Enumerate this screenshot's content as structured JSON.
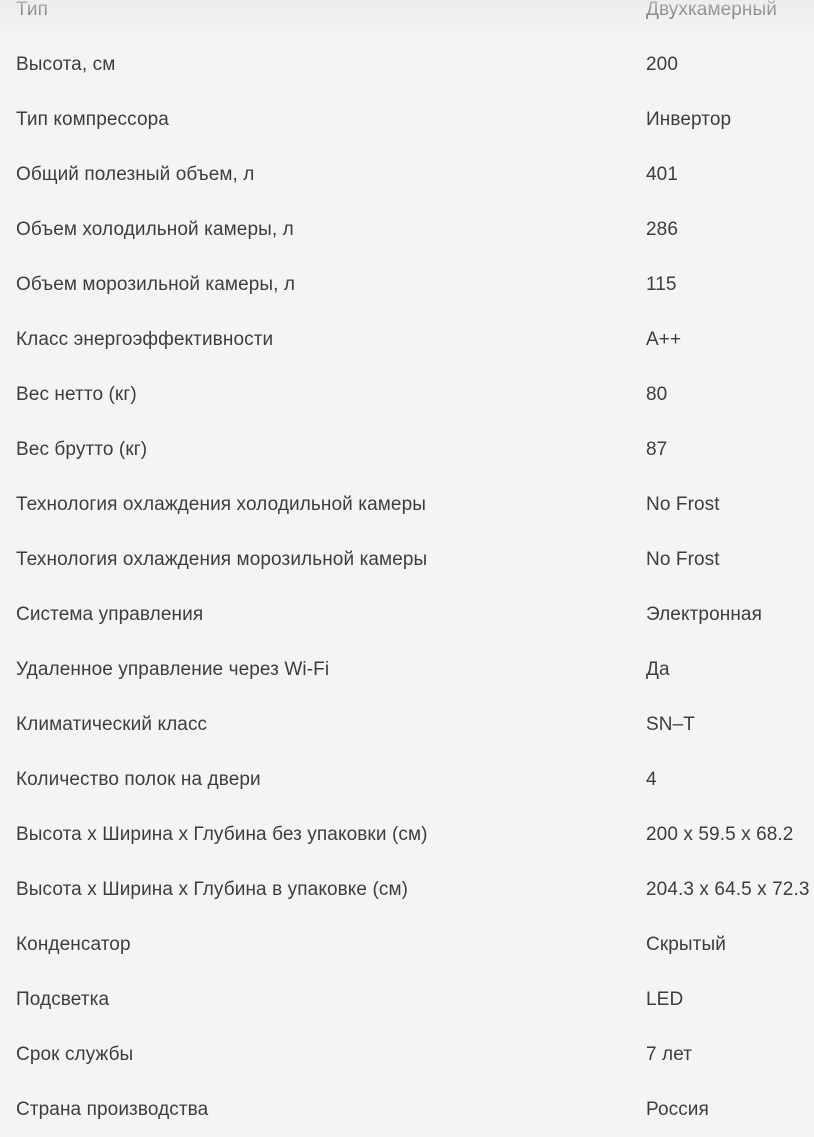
{
  "page": {
    "background_color": "#f4f4f4",
    "text_color": "#3d3d3d"
  },
  "spec_table": {
    "rows": [
      {
        "label": "Тип",
        "value": "Двухкамерный"
      },
      {
        "label": "Высота, см",
        "value": "200"
      },
      {
        "label": "Тип компрессора",
        "value": "Инвертор"
      },
      {
        "label": "Общий полезный объем, л",
        "value": "401"
      },
      {
        "label": "Объем холодильной камеры, л",
        "value": "286"
      },
      {
        "label": "Объем морозильной камеры, л",
        "value": "115"
      },
      {
        "label": "Класс энергоэффективности",
        "value": "A++"
      },
      {
        "label": "Вес нетто (кг)",
        "value": "80"
      },
      {
        "label": "Вес брутто (кг)",
        "value": "87"
      },
      {
        "label": "Технология охлаждения холодильной камеры",
        "value": "No Frost"
      },
      {
        "label": "Технология охлаждения морозильной камеры",
        "value": "No Frost"
      },
      {
        "label": "Система управления",
        "value": "Электронная"
      },
      {
        "label": "Удаленное управление через Wi-Fi",
        "value": "Да"
      },
      {
        "label": "Климатический класс",
        "value": "SN–T"
      },
      {
        "label": "Количество полок на двери",
        "value": "4"
      },
      {
        "label": "Высота х Ширина х Глубина без упаковки (см)",
        "value": "200 x 59.5 x 68.2"
      },
      {
        "label": "Высота х Ширина х Глубина в упаковке (см)",
        "value": "204.3 x 64.5 x 72.3"
      },
      {
        "label": "Конденсатор",
        "value": "Скрытый"
      },
      {
        "label": "Подсветка",
        "value": "LED"
      },
      {
        "label": "Срок службы",
        "value": "7 лет"
      },
      {
        "label": "Страна производства",
        "value": "Россия"
      }
    ]
  }
}
